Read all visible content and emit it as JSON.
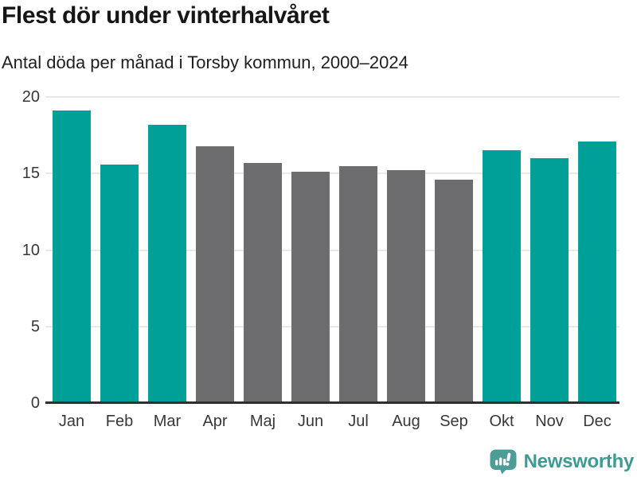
{
  "chart_data": {
    "type": "bar",
    "title": "Flest dör under vinterhalvåret",
    "subtitle": "Antal döda per månad i Torsby kommun, 2000–2024",
    "categories": [
      "Jan",
      "Feb",
      "Mar",
      "Apr",
      "Maj",
      "Jun",
      "Jul",
      "Aug",
      "Sep",
      "Okt",
      "Nov",
      "Dec"
    ],
    "values": [
      19.1,
      15.6,
      18.2,
      16.8,
      15.7,
      15.1,
      15.5,
      15.2,
      14.6,
      16.5,
      16.0,
      17.1
    ],
    "highlighted": [
      true,
      true,
      true,
      false,
      false,
      false,
      false,
      false,
      false,
      true,
      true,
      true
    ],
    "xlabel": "",
    "ylabel": "",
    "ylim": [
      0,
      20
    ],
    "yticks": [
      0,
      5,
      10,
      15,
      20
    ],
    "grid": true,
    "legend": false,
    "colors": {
      "highlight_bar": "#00a099",
      "default_bar": "#6d6d70",
      "gridline": "#e8e8e8",
      "axis_line": "#2f2f2f",
      "tick_text": "#383838"
    }
  },
  "branding": {
    "name": "Newsworthy",
    "logo_icon": "speech-bubble-bar-chart",
    "text_color": "#3f9a94",
    "bubble_color": "#4e9c97"
  }
}
